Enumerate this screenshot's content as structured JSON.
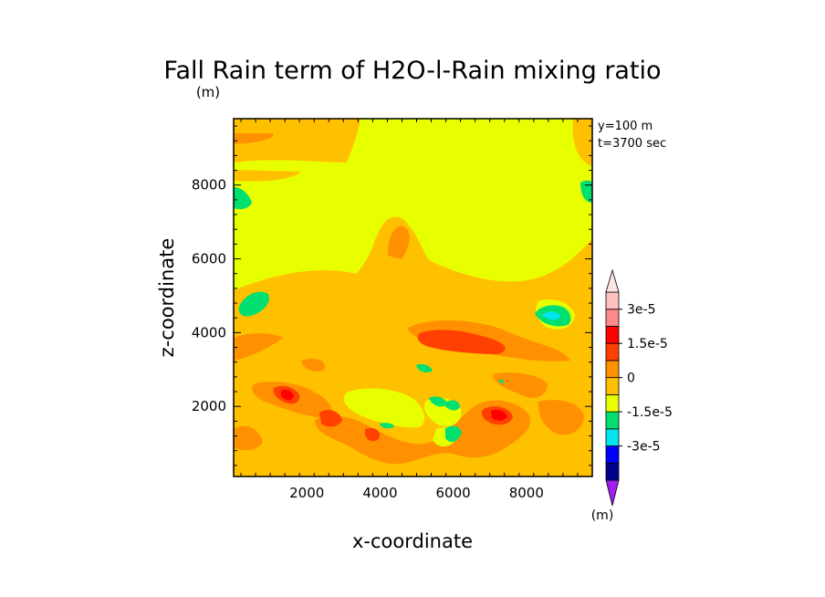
{
  "chart_data": {
    "type": "heatmap",
    "title": "Fall Rain term of H2O-l-Rain mixing ratio",
    "title_unit": "(m)",
    "xlabel": "x-coordinate",
    "ylabel": "z-coordinate",
    "annotations": [
      "y=100 m",
      "t=3700 sec"
    ],
    "x_ticks": [
      "2000",
      "4000",
      "6000",
      "8000"
    ],
    "y_ticks": [
      "2000",
      "4000",
      "6000",
      "8000"
    ],
    "xlim": [
      0,
      9800
    ],
    "ylim": [
      100,
      9800
    ],
    "colorbar": {
      "unit": "(m)",
      "levels": [
        -3e-05,
        -2.25e-05,
        -1.5e-05,
        -7.5e-06,
        0,
        7.5e-06,
        1.5e-05,
        2.25e-05,
        3e-05
      ],
      "labels": [
        "3e-5",
        "1.5e-5",
        "0",
        "-1.5e-5",
        "-3e-5"
      ],
      "colors": [
        "#a020f0",
        "#00008b",
        "#0000ff",
        "#00e5ee",
        "#00e070",
        "#e8ff00",
        "#ffc000",
        "#ff9000",
        "#ff4000",
        "#ff0000",
        "#ff8888",
        "#ffc0c0",
        "#ffe4e4"
      ]
    },
    "regions": [
      {
        "label": "background",
        "value": 0,
        "color": "#e8ff00"
      },
      {
        "label": "lower layer",
        "value": 7.5e-06,
        "color": "#ffc000"
      },
      {
        "label": "orange bands",
        "value": 1.2e-05,
        "color": "#ff9000"
      },
      {
        "label": "red cores",
        "value": 2.2e-05,
        "color": "#ff2000"
      },
      {
        "label": "green patches",
        "value": -8e-06,
        "color": "#00e070"
      },
      {
        "label": "cyan cores",
        "value": -1.2e-05,
        "color": "#00e5ee"
      }
    ]
  }
}
